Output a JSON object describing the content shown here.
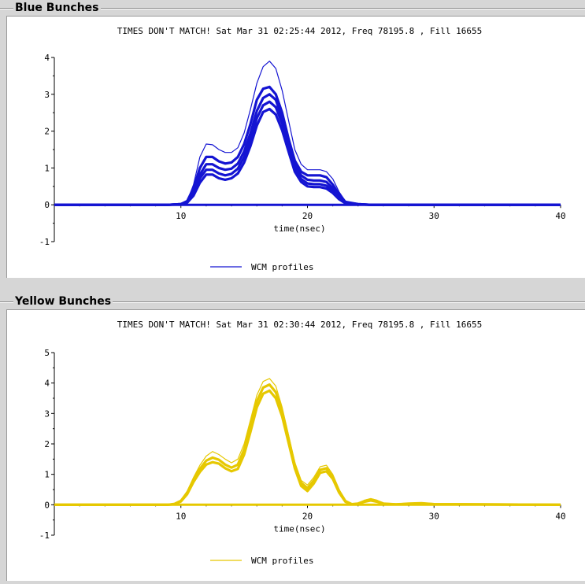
{
  "panels": [
    {
      "title": "Blue Bunches",
      "chart_data": {
        "type": "line",
        "title": "TIMES DON'T MATCH!   Sat Mar 31 02:25:44 2012, Freq 78195.8 , Fill 16655",
        "xlabel": "time(nsec)",
        "ylabel": "",
        "xlim": [
          0,
          40
        ],
        "ylim": [
          -1,
          4
        ],
        "xticks": [
          10,
          20,
          30,
          40
        ],
        "yticks": [
          -1,
          0,
          1,
          2,
          3,
          4
        ],
        "legend": "WCM profiles",
        "color": "#1414d2",
        "series": [
          {
            "x": [
              0,
              9,
              10,
              10.5,
              11,
              11.5,
              12,
              12.5,
              13,
              13.5,
              14,
              14.5,
              15,
              15.5,
              16,
              16.5,
              17,
              17.5,
              18,
              18.5,
              19,
              19.5,
              20,
              20.5,
              21,
              21.5,
              22,
              22.5,
              23,
              24,
              25,
              40
            ],
            "y": [
              0,
              0,
              0.02,
              0.1,
              0.55,
              1.3,
              1.65,
              1.63,
              1.5,
              1.42,
              1.42,
              1.55,
              1.95,
              2.6,
              3.3,
              3.75,
              3.9,
              3.7,
              3.1,
              2.3,
              1.5,
              1.1,
              0.95,
              0.95,
              0.95,
              0.9,
              0.7,
              0.35,
              0.1,
              0.02,
              0,
              0
            ]
          },
          {
            "x": [
              0,
              9,
              10,
              10.5,
              11,
              11.5,
              12,
              12.5,
              13,
              13.5,
              14,
              14.5,
              15,
              15.5,
              16,
              16.5,
              17,
              17.5,
              18,
              18.5,
              19,
              19.5,
              20,
              20.5,
              21,
              21.5,
              22,
              22.5,
              23,
              24,
              25,
              40
            ],
            "y": [
              0,
              0,
              0.02,
              0.1,
              0.45,
              1.0,
              1.3,
              1.3,
              1.18,
              1.12,
              1.15,
              1.3,
              1.65,
              2.2,
              2.85,
              3.15,
              3.2,
              3.0,
              2.5,
              1.8,
              1.2,
              0.9,
              0.8,
              0.8,
              0.8,
              0.75,
              0.55,
              0.28,
              0.08,
              0.02,
              0,
              0
            ]
          },
          {
            "x": [
              0,
              9,
              10,
              10.5,
              11,
              11.5,
              12,
              12.5,
              13,
              13.5,
              14,
              14.5,
              15,
              15.5,
              16,
              16.5,
              17,
              17.5,
              18,
              18.5,
              19,
              19.5,
              20,
              20.5,
              21,
              21.5,
              22,
              22.5,
              23,
              24,
              25,
              40
            ],
            "y": [
              0,
              0,
              0.02,
              0.08,
              0.35,
              0.82,
              1.1,
              1.1,
              1.0,
              0.95,
              0.98,
              1.12,
              1.45,
              1.95,
              2.55,
              2.9,
              3.0,
              2.85,
              2.35,
              1.7,
              1.1,
              0.8,
              0.68,
              0.66,
              0.66,
              0.62,
              0.45,
              0.22,
              0.06,
              0.02,
              0,
              0
            ]
          },
          {
            "x": [
              0,
              9,
              10,
              10.5,
              11,
              11.5,
              12,
              12.5,
              13,
              13.5,
              14,
              14.5,
              15,
              15.5,
              16,
              16.5,
              17,
              17.5,
              18,
              18.5,
              19,
              19.5,
              20,
              20.5,
              21,
              21.5,
              22,
              22.5,
              23,
              24,
              25,
              40
            ],
            "y": [
              0,
              0,
              0.02,
              0.07,
              0.3,
              0.72,
              0.95,
              0.95,
              0.85,
              0.8,
              0.84,
              0.98,
              1.3,
              1.78,
              2.35,
              2.7,
              2.8,
              2.65,
              2.2,
              1.6,
              1.0,
              0.7,
              0.58,
              0.56,
              0.56,
              0.52,
              0.38,
              0.18,
              0.05,
              0.01,
              0,
              0
            ]
          },
          {
            "x": [
              0,
              9,
              10,
              10.5,
              11,
              11.5,
              12,
              12.5,
              13,
              13.5,
              14,
              14.5,
              15,
              15.5,
              16,
              16.5,
              17,
              17.5,
              18,
              18.5,
              19,
              19.5,
              20,
              20.5,
              21,
              21.5,
              22,
              22.5,
              23,
              24,
              25,
              40
            ],
            "y": [
              0,
              0,
              0.01,
              0.06,
              0.25,
              0.6,
              0.82,
              0.82,
              0.72,
              0.68,
              0.72,
              0.85,
              1.15,
              1.6,
              2.15,
              2.52,
              2.6,
              2.45,
              2.02,
              1.45,
              0.9,
              0.62,
              0.5,
              0.48,
              0.48,
              0.44,
              0.32,
              0.15,
              0.04,
              0.01,
              0,
              0
            ]
          },
          {
            "x": [
              0,
              40
            ],
            "y": [
              0,
              0
            ]
          }
        ]
      }
    },
    {
      "title": "Yellow Bunches",
      "chart_data": {
        "type": "line",
        "title": "TIMES DON'T MATCH!   Sat Mar 31 02:30:44 2012, Freq 78195.8 , Fill 16655",
        "xlabel": "time(nsec)",
        "ylabel": "",
        "xlim": [
          0,
          40
        ],
        "ylim": [
          -1,
          5
        ],
        "xticks": [
          10,
          20,
          30,
          40
        ],
        "yticks": [
          -1,
          0,
          1,
          2,
          3,
          4,
          5
        ],
        "legend": "WCM profiles",
        "color": "#e6c800",
        "series": [
          {
            "x": [
              0,
              9,
              9.5,
              10,
              10.5,
              11,
              11.5,
              12,
              12.5,
              13,
              13.5,
              14,
              14.5,
              15,
              15.5,
              16,
              16.5,
              17,
              17.5,
              18,
              18.5,
              19,
              19.5,
              20,
              20.5,
              21,
              21.5,
              22,
              22.5,
              23,
              23.5,
              24,
              24.5,
              25,
              25.5,
              26,
              27,
              28,
              29,
              30,
              40
            ],
            "y": [
              0,
              0,
              0.03,
              0.15,
              0.45,
              0.9,
              1.3,
              1.6,
              1.75,
              1.65,
              1.5,
              1.38,
              1.5,
              2.0,
              2.8,
              3.6,
              4.05,
              4.15,
              3.9,
              3.2,
              2.3,
              1.4,
              0.8,
              0.65,
              0.9,
              1.25,
              1.3,
              1.0,
              0.5,
              0.15,
              0.02,
              0.05,
              0.15,
              0.2,
              0.15,
              0.05,
              0.02,
              0.05,
              0.06,
              0.03,
              0
            ]
          },
          {
            "x": [
              0,
              9,
              9.5,
              10,
              10.5,
              11,
              11.5,
              12,
              12.5,
              13,
              13.5,
              14,
              14.5,
              15,
              15.5,
              16,
              16.5,
              17,
              17.5,
              18,
              18.5,
              19,
              19.5,
              20,
              20.5,
              21,
              21.5,
              22,
              22.5,
              23,
              23.5,
              24,
              24.5,
              25,
              25.5,
              26,
              27,
              28,
              29,
              30,
              40
            ],
            "y": [
              0,
              0,
              0.03,
              0.13,
              0.4,
              0.82,
              1.18,
              1.45,
              1.55,
              1.48,
              1.32,
              1.22,
              1.32,
              1.82,
              2.6,
              3.4,
              3.85,
              3.95,
              3.7,
              3.05,
              2.18,
              1.3,
              0.72,
              0.55,
              0.8,
              1.15,
              1.2,
              0.92,
              0.45,
              0.12,
              0.02,
              0.04,
              0.12,
              0.18,
              0.12,
              0.04,
              0.01,
              0.04,
              0.05,
              0.02,
              0
            ]
          },
          {
            "x": [
              0,
              9,
              9.5,
              10,
              10.5,
              11,
              11.5,
              12,
              12.5,
              13,
              13.5,
              14,
              14.5,
              15,
              15.5,
              16,
              16.5,
              17,
              17.5,
              18,
              18.5,
              19,
              19.5,
              20,
              20.5,
              21,
              21.5,
              22,
              22.5,
              23,
              23.5,
              24,
              24.5,
              25,
              25.5,
              26,
              27,
              28,
              29,
              30,
              40
            ],
            "y": [
              0,
              0,
              0.02,
              0.11,
              0.35,
              0.75,
              1.08,
              1.32,
              1.4,
              1.35,
              1.2,
              1.1,
              1.18,
              1.65,
              2.4,
              3.2,
              3.65,
              3.75,
              3.5,
              2.9,
              2.05,
              1.2,
              0.62,
              0.45,
              0.7,
              1.05,
              1.1,
              0.85,
              0.4,
              0.1,
              0.01,
              0.03,
              0.1,
              0.14,
              0.1,
              0.03,
              0.01,
              0.03,
              0.04,
              0.02,
              0
            ]
          },
          {
            "x": [
              0,
              40
            ],
            "y": [
              0,
              0
            ]
          }
        ]
      }
    }
  ]
}
